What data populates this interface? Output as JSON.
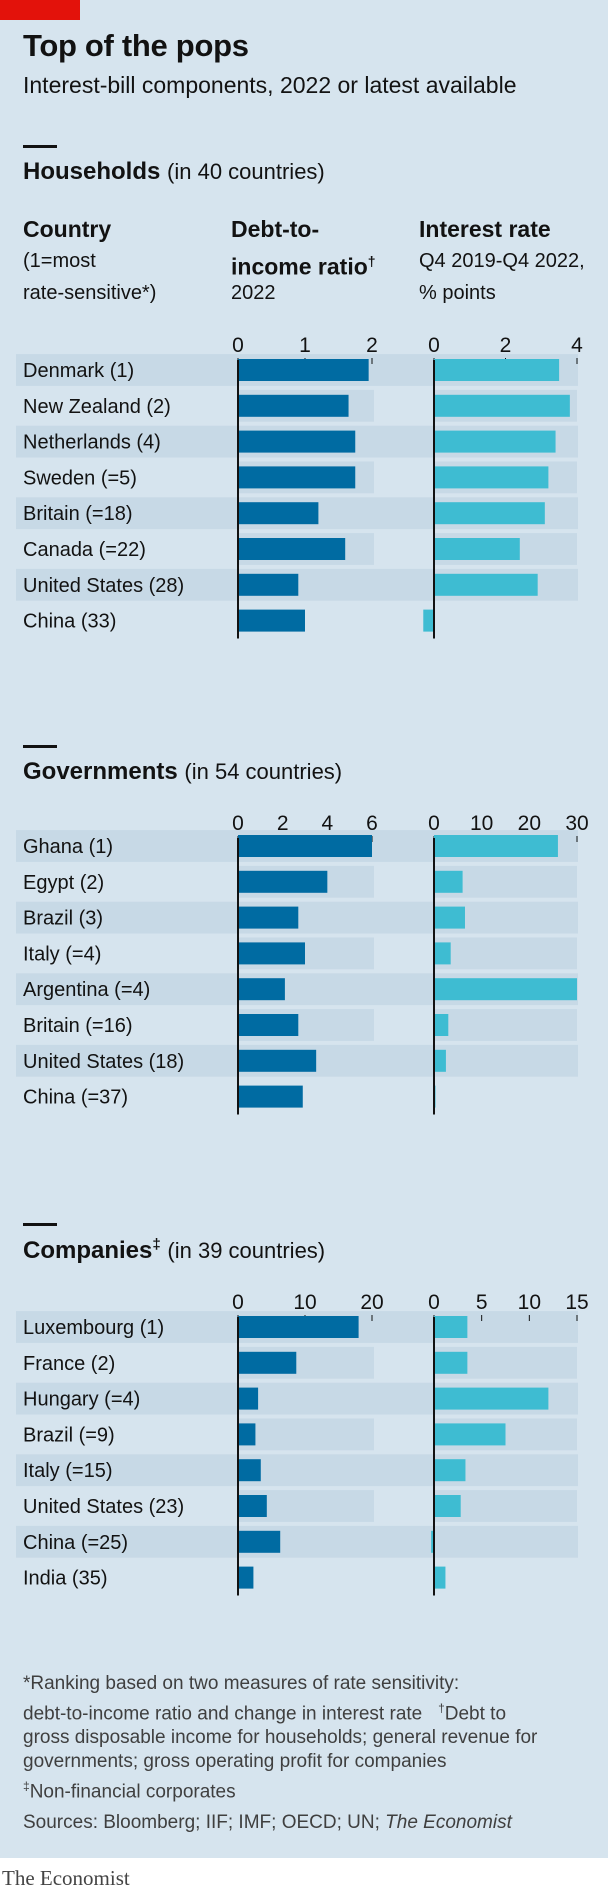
{
  "title": "Top of the pops",
  "subtitle": "Interest-bill components, 2022 or latest available",
  "header": {
    "country_title": "Country",
    "country_sub1": "(1=most",
    "country_sub2": "rate-sensitive*)",
    "debt_title1": "Debt-to-",
    "debt_title2": "income ratio",
    "debt_title_mark": "†",
    "debt_sub": "2022",
    "rate_title": "Interest rate",
    "rate_sub1": "Q4 2019-Q4 2022,",
    "rate_sub2": "% points"
  },
  "colors": {
    "panel": "#d6e4ee",
    "row_band": "#c7d9e6",
    "debt_bar": "#006ba2",
    "rate_bar": "#3ebcd2",
    "brand_red": "#e3120b"
  },
  "chart_data": [
    {
      "type": "bar",
      "section": "Households",
      "section_note": "(in 40 countries)",
      "section_mark": "",
      "categories": [
        "Denmark (1)",
        "New Zealand (2)",
        "Netherlands (4)",
        "Sweden (=5)",
        "Britain (=18)",
        "Canada (=22)",
        "United States (28)",
        "China (33)"
      ],
      "series": [
        {
          "name": "Debt-to-income ratio",
          "values": [
            1.95,
            1.65,
            1.75,
            1.75,
            1.2,
            1.6,
            0.9,
            1.0
          ],
          "xlim": [
            0,
            2
          ],
          "ticks": [
            "0",
            "1",
            "2"
          ]
        },
        {
          "name": "Interest rate",
          "values": [
            3.5,
            3.8,
            3.4,
            3.2,
            3.1,
            2.4,
            2.9,
            -0.3
          ],
          "xlim": [
            0,
            4
          ],
          "ticks": [
            "0",
            "2",
            "4"
          ]
        }
      ]
    },
    {
      "type": "bar",
      "section": "Governments",
      "section_note": "(in 54 countries)",
      "section_mark": "",
      "categories": [
        "Ghana (1)",
        "Egypt (2)",
        "Brazil (3)",
        "Italy (=4)",
        "Argentina (=4)",
        "Britain (=16)",
        "United States (18)",
        "China (=37)"
      ],
      "series": [
        {
          "name": "Debt-to-income ratio",
          "values": [
            6.0,
            4.0,
            2.7,
            3.0,
            2.1,
            2.7,
            3.5,
            2.9
          ],
          "xlim": [
            0,
            6
          ],
          "ticks": [
            "0",
            "2",
            "4",
            "6"
          ]
        },
        {
          "name": "Interest rate",
          "values": [
            26,
            6,
            6.5,
            3.5,
            30,
            3,
            2.5,
            0
          ],
          "xlim": [
            0,
            30
          ],
          "ticks": [
            "0",
            "10",
            "20",
            "30"
          ]
        }
      ]
    },
    {
      "type": "bar",
      "section": "Companies",
      "section_note": "(in 39 countries)",
      "section_mark": "‡",
      "categories": [
        "Luxembourg (1)",
        "France (2)",
        "Hungary (=4)",
        "Brazil (=9)",
        "Italy (=15)",
        "United States (23)",
        "China (=25)",
        "India (35)"
      ],
      "series": [
        {
          "name": "Debt-to-income ratio",
          "values": [
            18,
            8.7,
            3,
            2.6,
            3.4,
            4.3,
            6.3,
            2.3
          ],
          "xlim": [
            0,
            20
          ],
          "ticks": [
            "0",
            "10",
            "20"
          ]
        },
        {
          "name": "Interest rate",
          "values": [
            3.5,
            3.5,
            12,
            7.5,
            3.3,
            2.8,
            -0.3,
            1.2
          ],
          "xlim": [
            0,
            15
          ],
          "ticks": [
            "0",
            "5",
            "10",
            "15"
          ]
        }
      ]
    }
  ],
  "footnotes": {
    "line1": "*Ranking based on two measures of rate sensitivity:",
    "line2a": "debt-to-income ratio and change in interest rate",
    "line2_mark": "†",
    "line2b": "Debt to",
    "line3": "gross disposable  income for households; general revenue for",
    "line4": "governments;  gross operating profit for companies",
    "line5_mark": "‡",
    "line5": "Non-financial corporates",
    "sources_prefix": "Sources: Bloomberg; IIF; IMF; OECD; UN; ",
    "sources_italic": "The Economist"
  },
  "brand": "The Economist"
}
